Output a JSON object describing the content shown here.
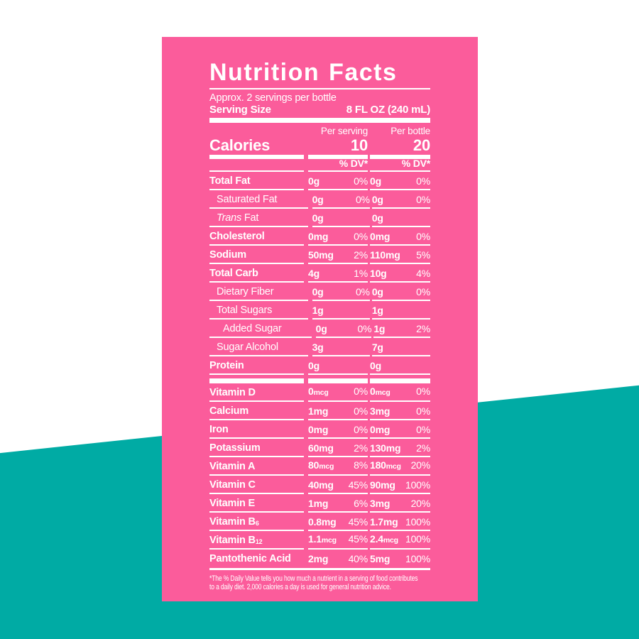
{
  "colors": {
    "background_top": "#FFFFFF",
    "background_bottom_teal": "#00ABA4",
    "label_pink": "#FB5C9B",
    "label_text": "#FFFFFF"
  },
  "label": {
    "title": "Nutrition Facts",
    "servings_line": "Approx. 2 servings per bottle",
    "serving_size_label": "Serving Size",
    "serving_size_value": "8 FL OZ (240 mL)",
    "col_heads": {
      "per_serving": "Per serving",
      "per_bottle": "Per bottle"
    },
    "calories": {
      "label": "Calories",
      "per_serving": "10",
      "per_bottle": "20"
    },
    "dv_header": "% DV*",
    "rows": [
      {
        "style": "bold",
        "name": "Total Fat",
        "ps_amt": "0g",
        "ps_dv": "0%",
        "pb_amt": "0g",
        "pb_dv": "0%"
      },
      {
        "style": "indent",
        "name": "Saturated Fat",
        "ps_amt": "0g",
        "ps_dv": "0%",
        "pb_amt": "0g",
        "pb_dv": "0%"
      },
      {
        "style": "indent",
        "italic": "Trans",
        "name": " Fat",
        "ps_amt": "0g",
        "pb_amt": "0g"
      },
      {
        "style": "bold",
        "name": "Cholesterol",
        "ps_amt": "0mg",
        "ps_dv": "0%",
        "pb_amt": "0mg",
        "pb_dv": "0%"
      },
      {
        "style": "bold",
        "name": "Sodium",
        "ps_amt": "50mg",
        "ps_dv": "2%",
        "pb_amt": "110mg",
        "pb_dv": "5%"
      },
      {
        "style": "bold",
        "name": "Total Carb",
        "ps_amt": "4g",
        "ps_dv": "1%",
        "pb_amt": "10g",
        "pb_dv": "4%"
      },
      {
        "style": "indent",
        "name": "Dietary Fiber",
        "ps_amt": "0g",
        "ps_dv": "0%",
        "pb_amt": "0g",
        "pb_dv": "0%"
      },
      {
        "style": "indent",
        "name": "Total Sugars",
        "ps_amt": "1g",
        "pb_amt": "1g"
      },
      {
        "style": "indent2",
        "name": "Added Sugar",
        "ps_amt": "0g",
        "ps_dv": "0%",
        "pb_amt": "1g",
        "pb_dv": "2%"
      },
      {
        "style": "indent",
        "name": "Sugar Alcohol",
        "ps_amt": "3g",
        "pb_amt": "7g"
      },
      {
        "style": "bold",
        "name": "Protein",
        "ps_amt": "0g",
        "pb_amt": "0g"
      },
      {
        "divider": true
      },
      {
        "style": "plain",
        "name": "Vitamin D",
        "ps_amt": "0mcg",
        "ps_dv": "0%",
        "pb_amt": "0mcg",
        "pb_dv": "0%"
      },
      {
        "style": "plain",
        "name": "Calcium",
        "ps_amt": "1mg",
        "ps_dv": "0%",
        "pb_amt": "3mg",
        "pb_dv": "0%"
      },
      {
        "style": "plain",
        "name": "Iron",
        "ps_amt": "0mg",
        "ps_dv": "0%",
        "pb_amt": "0mg",
        "pb_dv": "0%"
      },
      {
        "style": "plain",
        "name": "Potassium",
        "ps_amt": "60mg",
        "ps_dv": "2%",
        "pb_amt": "130mg",
        "pb_dv": "2%"
      },
      {
        "style": "plain",
        "name": "Vitamin A",
        "ps_amt": "80mcg",
        "ps_dv": "8%",
        "pb_amt": "180mcg",
        "pb_dv": "20%"
      },
      {
        "style": "plain",
        "name": "Vitamin C",
        "ps_amt": "40mg",
        "ps_dv": "45%",
        "pb_amt": "90mg",
        "pb_dv": "100%"
      },
      {
        "style": "plain",
        "name": "Vitamin E",
        "ps_amt": "1mg",
        "ps_dv": "6%",
        "pb_amt": "3mg",
        "pb_dv": "20%"
      },
      {
        "style": "plain",
        "name": "Vitamin B",
        "sub": "6",
        "ps_amt": "0.8mg",
        "ps_dv": "45%",
        "pb_amt": "1.7mg",
        "pb_dv": "100%"
      },
      {
        "style": "plain",
        "name": "Vitamin B",
        "sub": "12",
        "ps_amt": "1.1mcg",
        "ps_dv": "45%",
        "pb_amt": "2.4mcg",
        "pb_dv": "100%"
      },
      {
        "style": "plain",
        "name": "Pantothenic Acid",
        "ps_amt": "2mg",
        "ps_dv": "40%",
        "pb_amt": "5mg",
        "pb_dv": "100%"
      }
    ],
    "footnote_lines": [
      "*The % Daily Value tells you how much a nutrient in a serving of food contributes",
      "to a daily diet. 2,000 calories a day is used for general nutrition advice."
    ]
  }
}
